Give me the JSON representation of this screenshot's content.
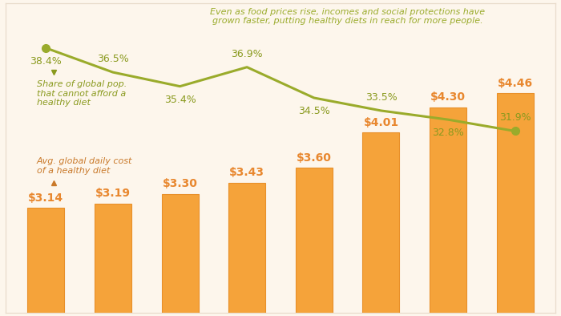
{
  "chart_data": {
    "type": "bar",
    "annotations": [
      "Even as food prices rise, incomes and social protections have grown faster, putting healthy diets in reach for more people."
    ],
    "categories": [
      null,
      null,
      null,
      null,
      null,
      null,
      null,
      null
    ],
    "series": [
      {
        "name": "Avg. global daily cost of a healthy diet",
        "type": "bar",
        "color": "#f5a33a",
        "values": [
          3.14,
          3.19,
          3.3,
          3.43,
          3.6,
          4.01,
          4.3,
          4.46
        ],
        "value_labels": [
          "$3.14",
          "$3.19",
          "$3.30",
          "$3.43",
          "$3.60",
          "$4.01",
          "$4.30",
          "$4.46"
        ]
      },
      {
        "name": "Share of global pop. that cannot afford a healthy diet",
        "type": "line",
        "axis": "y2",
        "color": "#9aab2b",
        "marker": "o",
        "line_style": "solid",
        "values": [
          38.4,
          36.5,
          35.4,
          36.9,
          34.5,
          33.5,
          32.8,
          31.9
        ],
        "value_labels": [
          "38.4%",
          "36.5%",
          "35.4%",
          "36.9%",
          "34.5%",
          "33.5%",
          "32.8%",
          "31.9%"
        ]
      }
    ],
    "ylim": [
      1.93,
      5.5
    ],
    "yticks": [],
    "y2lim": [
      17.7,
      41.9
    ],
    "y2ticks": [],
    "data_labels": true,
    "tick_labels": false,
    "grid": false
  }
}
